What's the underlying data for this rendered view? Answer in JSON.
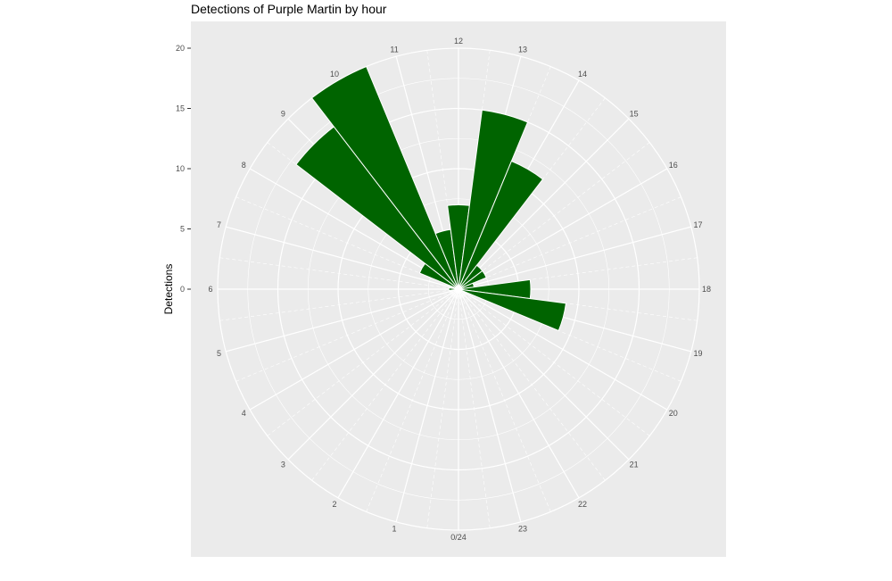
{
  "chart_data": {
    "type": "bar",
    "coord": "polar",
    "title": "Detections of Purple Martin by hour",
    "xlabel": "",
    "ylabel": "Detections",
    "ylim": [
      0,
      20
    ],
    "y_ticks": [
      "0",
      "5",
      "10",
      "15",
      "20"
    ],
    "x_ticks": [
      "0/24",
      "1",
      "2",
      "3",
      "4",
      "5",
      "6",
      "7",
      "8",
      "9",
      "10",
      "11",
      "12",
      "13",
      "14",
      "15",
      "16",
      "17",
      "18",
      "19",
      "20",
      "21",
      "22",
      "23"
    ],
    "x": [
      0,
      1,
      2,
      3,
      4,
      5,
      6,
      7,
      8,
      9,
      10,
      11,
      12,
      13,
      14,
      15,
      16,
      17,
      18,
      19,
      20,
      21,
      22,
      23
    ],
    "values": [
      0,
      0,
      0,
      0,
      0,
      0,
      0.8,
      0,
      3.5,
      17,
      20,
      5,
      7,
      15,
      11.5,
      2.5,
      2.5,
      1.3,
      6,
      9,
      0,
      0,
      0,
      0
    ],
    "bar_color": "#006400",
    "panel_background": "#ebebeb",
    "grid_color": "#ffffff",
    "grid": true
  }
}
